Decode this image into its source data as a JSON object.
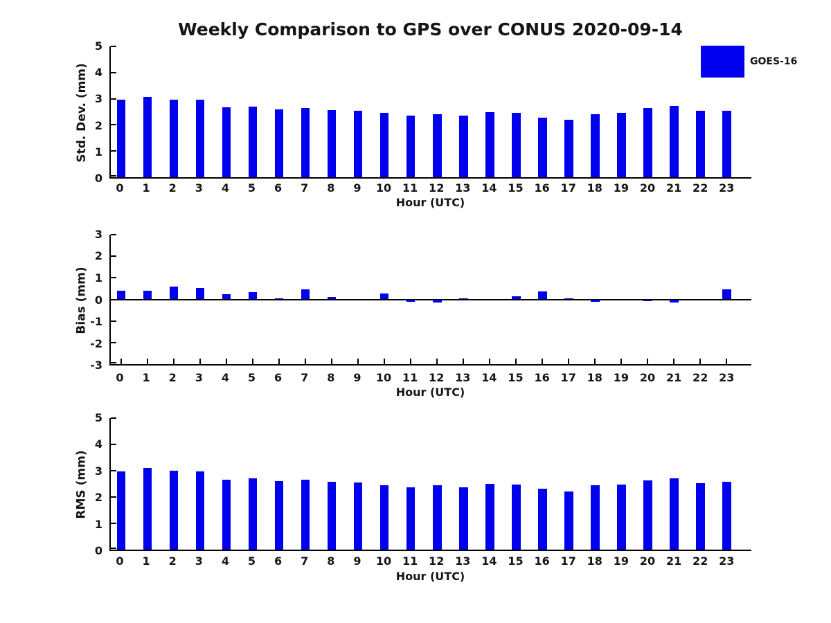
{
  "title": "Weekly Comparison to GPS over CONUS 2020-09-14",
  "legend": {
    "label": "GOES-16",
    "swatch_color": "#0000EE"
  },
  "colors": {
    "bar": "#0000EE",
    "axis": "#000000",
    "text": "#151515",
    "background": "#FFFFFF"
  },
  "chart_data": [
    {
      "type": "bar",
      "name": "std-dev",
      "ylabel": "Std. Dev. (mm)",
      "xlabel": "Hour (UTC)",
      "categories": [
        "0",
        "1",
        "2",
        "3",
        "4",
        "5",
        "6",
        "7",
        "8",
        "9",
        "10",
        "11",
        "12",
        "13",
        "14",
        "15",
        "16",
        "17",
        "18",
        "19",
        "20",
        "21",
        "22",
        "23"
      ],
      "values": [
        2.95,
        3.08,
        2.96,
        2.96,
        2.67,
        2.7,
        2.6,
        2.64,
        2.56,
        2.53,
        2.45,
        2.36,
        2.42,
        2.36,
        2.49,
        2.46,
        2.28,
        2.19,
        2.42,
        2.47,
        2.64,
        2.72,
        2.53,
        2.55
      ],
      "ylim": [
        0,
        5
      ],
      "yticks": [
        0,
        1,
        2,
        3,
        4,
        5
      ],
      "grid": false,
      "legend_entries": [
        "GOES-16"
      ],
      "legend_position": "top-right"
    },
    {
      "type": "bar",
      "name": "bias",
      "ylabel": "Bias (mm)",
      "xlabel": "Hour (UTC)",
      "categories": [
        "0",
        "1",
        "2",
        "3",
        "4",
        "5",
        "6",
        "7",
        "8",
        "9",
        "10",
        "11",
        "12",
        "13",
        "14",
        "15",
        "16",
        "17",
        "18",
        "19",
        "20",
        "21",
        "22",
        "23"
      ],
      "values": [
        0.4,
        0.4,
        0.6,
        0.52,
        0.24,
        0.33,
        0.05,
        0.45,
        0.1,
        0.0,
        0.27,
        -0.1,
        -0.13,
        0.05,
        0.0,
        0.13,
        0.36,
        0.05,
        -0.12,
        0.0,
        -0.08,
        -0.15,
        0.0,
        0.45
      ],
      "ylim": [
        -3,
        3
      ],
      "yticks": [
        3,
        2,
        1,
        0,
        -1,
        -2,
        -3
      ],
      "grid": false
    },
    {
      "type": "bar",
      "name": "rms",
      "ylabel": "RMS (mm)",
      "xlabel": "Hour (UTC)",
      "categories": [
        "0",
        "1",
        "2",
        "3",
        "4",
        "5",
        "6",
        "7",
        "8",
        "9",
        "10",
        "11",
        "12",
        "13",
        "14",
        "15",
        "16",
        "17",
        "18",
        "19",
        "20",
        "21",
        "22",
        "23"
      ],
      "values": [
        2.98,
        3.1,
        3.01,
        2.98,
        2.66,
        2.71,
        2.61,
        2.67,
        2.58,
        2.55,
        2.46,
        2.38,
        2.44,
        2.38,
        2.51,
        2.48,
        2.31,
        2.21,
        2.45,
        2.48,
        2.63,
        2.72,
        2.53,
        2.59
      ],
      "ylim": [
        0,
        5
      ],
      "yticks": [
        0,
        1,
        2,
        3,
        4,
        5
      ],
      "grid": false
    }
  ]
}
